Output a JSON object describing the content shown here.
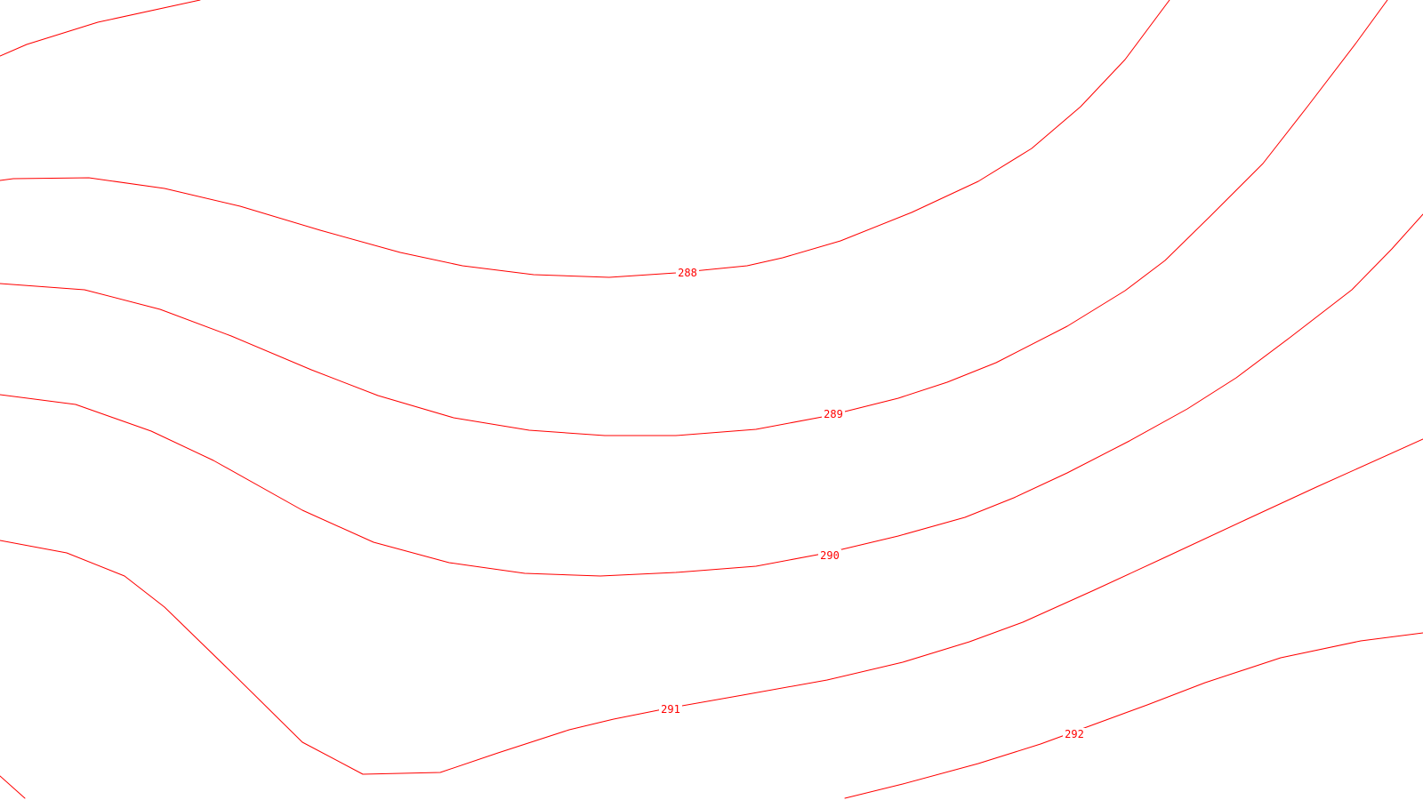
{
  "map": {
    "line_color": "#ff0000",
    "background_color": "#ffffff",
    "contours": [
      {
        "id": "contour-unlabeled-top"
      },
      {
        "id": "contour-288",
        "label": "288"
      },
      {
        "id": "contour-289",
        "label": "289"
      },
      {
        "id": "contour-290",
        "label": "290"
      },
      {
        "id": "contour-291",
        "label": "291"
      },
      {
        "id": "contour-292",
        "label": "292"
      },
      {
        "id": "contour-unlabeled-corner"
      }
    ]
  }
}
